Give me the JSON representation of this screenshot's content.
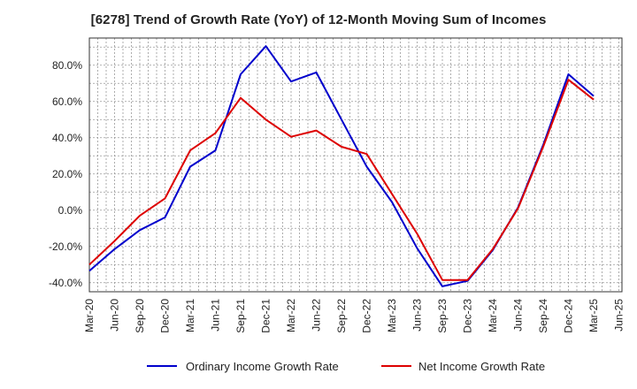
{
  "chart_data": {
    "type": "line",
    "title": "[6278]  Trend of Growth Rate (YoY) of 12-Month Moving Sum of Incomes",
    "xlabel": "",
    "ylabel": "",
    "ylim": [
      -45,
      95
    ],
    "y_ticks": [
      -40,
      -20,
      0,
      20,
      40,
      60,
      80
    ],
    "y_tick_labels": [
      "-40.0%",
      "-20.0%",
      "0.0%",
      "20.0%",
      "40.0%",
      "60.0%",
      "80.0%"
    ],
    "x_tick_labels": [
      "Mar-20",
      "Jun-20",
      "Sep-20",
      "Dec-20",
      "Mar-21",
      "Jun-21",
      "Sep-21",
      "Dec-21",
      "Mar-22",
      "Jun-22",
      "Sep-22",
      "Dec-22",
      "Mar-23",
      "Jun-23",
      "Sep-23",
      "Dec-23",
      "Mar-24",
      "Jun-24",
      "Sep-24",
      "Dec-24",
      "Mar-25",
      "Jun-25"
    ],
    "grid": true,
    "legend_position": "bottom",
    "series": [
      {
        "name": "Ordinary Income Growth Rate",
        "color": "#0000cc",
        "values": [
          -33.5,
          -21.5,
          -11,
          -4,
          24,
          33,
          75,
          90.5,
          71,
          76,
          50,
          24,
          4.5,
          -21,
          -42,
          -39,
          -22,
          1.5,
          36,
          75,
          63
        ]
      },
      {
        "name": "Net Income Growth Rate",
        "color": "#dd0000",
        "values": [
          -30,
          -17,
          -3,
          6.5,
          33,
          42.5,
          62,
          50,
          40.5,
          44,
          35,
          31,
          9,
          -13,
          -38.5,
          -38.5,
          -21.5,
          1,
          35,
          72,
          61
        ]
      }
    ]
  }
}
